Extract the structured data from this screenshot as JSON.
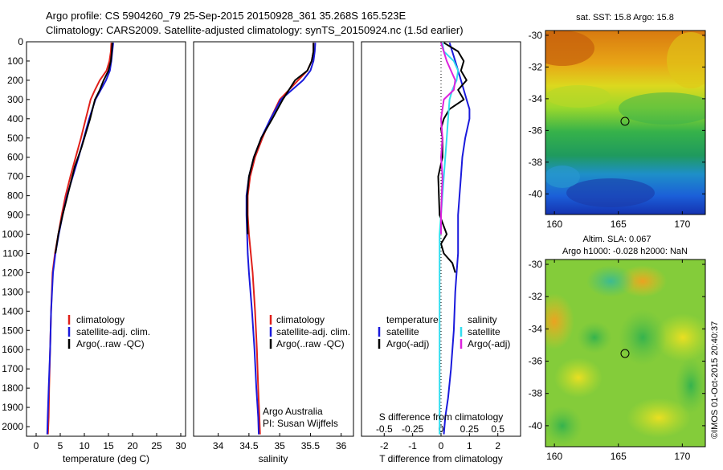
{
  "header": {
    "title_line1": "Argo profile: CS 5904260_79 25-Sep-2015 20150928_361 35.268S 165.523E",
    "title_line2": "Climatology: CARS2009. Satellite-adjusted climatology: synTS_20150924.nc (1.5d earlier)"
  },
  "colors": {
    "climatology": "#e0201a",
    "satellite": "#1a1adc",
    "argo": "#000000",
    "sal_satellite": "#33ddee",
    "sal_argo": "#dd22dd"
  },
  "panels": {
    "temperature": {
      "xlabel": "temperature (deg C)",
      "legend": [
        "climatology",
        "satellite-adj. clim.",
        "Argo(..raw -QC)"
      ]
    },
    "salinity": {
      "xlabel": "salinity",
      "legend": [
        "climatology",
        "satellite-adj. clim.",
        "Argo(..raw -QC)"
      ],
      "note_line1": "Argo Australia",
      "note_line2": "PI: Susan Wijffels"
    },
    "difference": {
      "xlabel": "T difference from climatology",
      "top_label": "S difference from climatology",
      "temp_heading": "temperature",
      "sal_heading": "salinity",
      "temp_legend": [
        "satellite",
        "Argo(-adj)"
      ],
      "sal_legend": [
        "satellite",
        "Argo(-adj)"
      ]
    },
    "sst_map": {
      "title": "sat. SST: 15.8 Argo: 15.8"
    },
    "sla_map": {
      "title_line1": "Altim. SLA: 0.067",
      "title_line2": "Argo h1000: -0.028 h2000: NaN"
    }
  },
  "watermark": "©IMOS 01-Oct-2015 20:40:37",
  "chart_data": [
    {
      "type": "line",
      "title": "Argo profile: CS 5904260_79 25-Sep-2015 20150928_361 35.268S 165.523E",
      "xlabel": "temperature (deg C)",
      "xlim": [
        -2,
        31
      ],
      "ylim": [
        2050,
        0
      ],
      "xticks": [
        0,
        5,
        10,
        15,
        20,
        25,
        30
      ],
      "yticks": [
        0,
        100,
        200,
        300,
        400,
        500,
        600,
        700,
        800,
        900,
        1000,
        1100,
        1200,
        1300,
        1400,
        1500,
        1600,
        1700,
        1800,
        1900,
        2000
      ],
      "series": [
        {
          "name": "climatology",
          "color": "#e0201a",
          "x": [
            15.6,
            15.5,
            15.2,
            14.6,
            13.2,
            12.2,
            11.3,
            10.3,
            9.3,
            8.2,
            7.1,
            6.1,
            5.3,
            4.6,
            3.9,
            3.4,
            3.1,
            2.9,
            2.7,
            2.6,
            2.45
          ],
          "y": [
            5,
            50,
            100,
            150,
            200,
            250,
            300,
            400,
            500,
            600,
            700,
            800,
            900,
            1000,
            1100,
            1200,
            1400,
            1600,
            1800,
            1950,
            2040
          ]
        },
        {
          "name": "satellite-adj. clim.",
          "color": "#1a1adc",
          "x": [
            16.0,
            15.8,
            15.6,
            15.3,
            14.5,
            13.4,
            12.3,
            11.0,
            9.9,
            8.8,
            7.6,
            6.4,
            5.5,
            4.7,
            4.0,
            3.5,
            3.1,
            2.9,
            2.6,
            2.4,
            2.3
          ],
          "y": [
            5,
            50,
            100,
            150,
            200,
            250,
            300,
            400,
            500,
            600,
            700,
            800,
            900,
            1000,
            1100,
            1200,
            1400,
            1600,
            1800,
            1950,
            2040
          ]
        },
        {
          "name": "Argo(..raw -QC)",
          "color": "#000000",
          "x": [
            15.8,
            15.7,
            15.5,
            15.0,
            14.0,
            13.2,
            12.2,
            11.2,
            10.6,
            9.4,
            8.0,
            6.5,
            5.5,
            4.6,
            4.0
          ],
          "y": [
            5,
            50,
            100,
            150,
            200,
            250,
            300,
            400,
            450,
            550,
            650,
            800,
            900,
            1000,
            1100
          ]
        }
      ]
    },
    {
      "type": "line",
      "xlabel": "salinity",
      "xlim": [
        33.6,
        36.2
      ],
      "ylim": [
        2050,
        0
      ],
      "xticks": [
        34,
        34.5,
        35,
        35.5,
        36
      ],
      "series": [
        {
          "name": "climatology",
          "color": "#e0201a",
          "x": [
            35.55,
            35.55,
            35.52,
            35.45,
            35.3,
            35.15,
            35.0,
            34.85,
            34.72,
            34.6,
            34.52,
            34.48,
            34.48,
            34.5,
            34.53,
            34.56,
            34.6,
            34.63,
            34.65,
            34.67,
            34.68
          ],
          "y": [
            5,
            50,
            100,
            150,
            200,
            250,
            300,
            400,
            500,
            600,
            700,
            800,
            900,
            1000,
            1100,
            1200,
            1400,
            1600,
            1800,
            1950,
            2040
          ]
        },
        {
          "name": "satellite-adj. clim.",
          "color": "#1a1adc",
          "x": [
            35.58,
            35.57,
            35.55,
            35.5,
            35.38,
            35.2,
            35.02,
            34.85,
            34.7,
            34.58,
            34.5,
            34.46,
            34.46,
            34.47,
            34.48,
            34.5,
            34.55,
            34.59,
            34.62,
            34.65,
            34.66
          ],
          "y": [
            5,
            50,
            100,
            150,
            200,
            250,
            300,
            400,
            500,
            600,
            700,
            800,
            900,
            1000,
            1100,
            1200,
            1400,
            1600,
            1800,
            1950,
            2040
          ]
        },
        {
          "name": "Argo(..raw -QC)",
          "color": "#000000",
          "x": [
            35.55,
            35.55,
            35.52,
            35.45,
            35.25,
            35.05,
            34.88,
            34.7,
            34.58,
            34.5,
            34.47,
            34.47,
            34.48
          ],
          "y": [
            5,
            50,
            100,
            150,
            200,
            300,
            400,
            500,
            600,
            700,
            800,
            900,
            1000
          ]
        }
      ]
    },
    {
      "type": "line",
      "xlabel": "T difference from climatology",
      "top_label": "S difference from climatology",
      "xlim": [
        -2.8,
        2.8
      ],
      "ylim": [
        2050,
        0
      ],
      "xticks": [
        -2,
        -1,
        0,
        1,
        2
      ],
      "top_ticks": [
        "-0.5",
        "-0.25",
        "0",
        "0.25",
        "0.5"
      ],
      "series": [
        {
          "name": "satellite (temperature)",
          "color": "#1a1adc",
          "x": [
            0.3,
            0.5,
            0.7,
            0.9,
            1.0,
            1.0,
            0.85,
            0.75,
            0.7,
            0.65,
            0.6,
            0.6,
            0.6,
            0.55,
            0.5,
            0.45,
            0.35,
            0.25,
            0.15,
            0.1
          ],
          "y": [
            5,
            100,
            200,
            300,
            350,
            400,
            500,
            600,
            700,
            800,
            900,
            1000,
            1100,
            1200,
            1300,
            1500,
            1700,
            1850,
            1950,
            2040
          ]
        },
        {
          "name": "Argo(-adj) (temperature)",
          "color": "#000000",
          "x": [
            0.1,
            0.6,
            0.8,
            0.7,
            0.9,
            0.6,
            0.8,
            0.3,
            0.1,
            0.0,
            0.05,
            0.05,
            -0.1,
            -0.05,
            0.2,
            0.0,
            0.1,
            0.4,
            0.5
          ],
          "y": [
            5,
            50,
            100,
            150,
            200,
            250,
            300,
            350,
            400,
            450,
            500,
            600,
            700,
            900,
            1000,
            1050,
            1100,
            1150,
            1200
          ]
        },
        {
          "name": "satellite (salinity)",
          "color": "#33ddee",
          "x": [
            0.05,
            0.1,
            0.45,
            0.6,
            0.55,
            0.4,
            0.3,
            0.25,
            0.2,
            0.15,
            0.1,
            0.05,
            0.0,
            -0.05,
            -0.05,
            -0.05,
            -0.05,
            -0.05,
            -0.05
          ],
          "y": [
            5,
            50,
            100,
            150,
            200,
            250,
            300,
            400,
            500,
            600,
            700,
            800,
            900,
            1000,
            1200,
            1400,
            1600,
            1800,
            2040
          ]
        },
        {
          "name": "Argo(-adj) (salinity)",
          "color": "#dd22dd",
          "x": [
            0.0,
            0.2,
            0.5,
            0.45,
            0.1,
            0.0,
            0.05,
            0.0,
            0.05,
            0.0,
            0.0
          ],
          "y": [
            5,
            100,
            200,
            250,
            300,
            400,
            500,
            600,
            700,
            900,
            1000
          ]
        }
      ]
    },
    {
      "type": "heatmap",
      "title": "sat. SST: 15.8 Argo: 15.8",
      "xlim": [
        159.3,
        171.8
      ],
      "ylim": [
        -41.3,
        -29.7
      ],
      "xticks": [
        160,
        165,
        170
      ],
      "yticks": [
        -30,
        -32,
        -34,
        -36,
        -38,
        -40
      ],
      "marker": {
        "lon": 165.5,
        "lat": -35.3
      }
    },
    {
      "type": "heatmap",
      "title": "Altim. SLA: 0.067",
      "subtitle": "Argo h1000: -0.028 h2000: NaN",
      "xlim": [
        159.3,
        171.8
      ],
      "ylim": [
        -41.3,
        -29.7
      ],
      "xticks": [
        160,
        165,
        170
      ],
      "yticks": [
        -30,
        -32,
        -34,
        -36,
        -38,
        -40
      ],
      "marker": {
        "lon": 165.5,
        "lat": -35.3
      }
    }
  ]
}
